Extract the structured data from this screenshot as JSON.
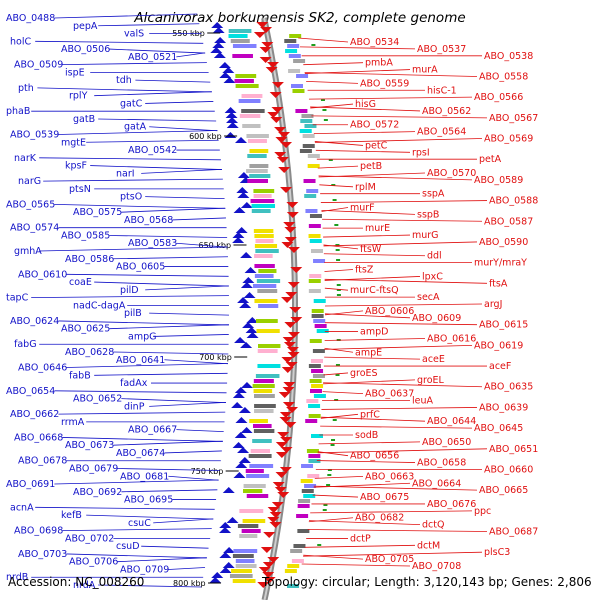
{
  "title": "Alcanivorax borkumensis SK2, complete genome",
  "footer": {
    "accession": "Accession: NC_008260",
    "topology": "Topology: circular; Length: 3,120,143 bp; Genes: 2,806"
  },
  "colors": {
    "left_strand": "#1212c8",
    "right_strand": "#e01010",
    "backbone": "#8a8a8a"
  },
  "kbp_labels": [
    "550 kbp",
    "600 kbp",
    "650 kbp",
    "700 kbp",
    "750 kbp",
    "800 kbp"
  ],
  "left_labels": [
    "ABO_0488",
    "pepA",
    "valS",
    "holC",
    "ABO_0506",
    "ABO_0521",
    "ABO_0509",
    "ispE",
    "tdh",
    "pth",
    "rplY",
    "gatC",
    "phaB",
    "gatB",
    "gatA",
    "ABO_0539",
    "mgtE",
    "ABO_0542",
    "narK",
    "kpsF",
    "narI",
    "narG",
    "ptsN",
    "ptsO",
    "ABO_0565",
    "ABO_0575",
    "ABO_0568",
    "ABO_0574",
    "ABO_0585",
    "ABO_0583",
    "gmhA",
    "ABO_0586",
    "ABO_0605",
    "ABO_0610",
    "coaE",
    "pilD",
    "tapC",
    "nadC-dagA",
    "pilB",
    "ABO_0624",
    "ABO_0625",
    "ampG",
    "fabG",
    "ABO_0628",
    "ABO_0641",
    "ABO_0646",
    "fabB",
    "fadAx",
    "ABO_0654",
    "ABO_0652",
    "dinP",
    "ABO_0662",
    "rrmA",
    "ABO_0667",
    "ABO_0668",
    "ABO_0673",
    "ABO_0674",
    "ABO_0678",
    "ABO_0679",
    "ABO_0681",
    "ABO_0691",
    "ABO_0692",
    "ABO_0695",
    "acnA",
    "kefB",
    "csuC",
    "ABO_0698",
    "ABO_0702",
    "csuD",
    "ABO_0703",
    "ABO_0706",
    "ABO_0709",
    "nrdB",
    "nrdA"
  ],
  "right_labels": [
    "ABO_0534",
    "ABO_0537",
    "ABO_0538",
    "pmbA",
    "murA",
    "ABO_0558",
    "ABO_0559",
    "hisC-1",
    "ABO_0566",
    "hisG",
    "ABO_0562",
    "ABO_0567",
    "ABO_0572",
    "ABO_0564",
    "ABO_0569",
    "petC",
    "rpsI",
    "petA",
    "petB",
    "ABO_0570",
    "ABO_0589",
    "rplM",
    "sspA",
    "ABO_0588",
    "murF",
    "sspB",
    "ABO_0587",
    "murE",
    "murG",
    "ABO_0590",
    "ftsW",
    "ddl",
    "murY/mraY",
    "ftsZ",
    "lpxC",
    "ftsA",
    "murC-ftsQ",
    "secA",
    "argJ",
    "ABO_0606",
    "ABO_0609",
    "ABO_0615",
    "ampD",
    "ABO_0616",
    "ABO_0619",
    "ampE",
    "aceE",
    "aceF",
    "groES",
    "groEL",
    "ABO_0635",
    "ABO_0637",
    "leuA",
    "ABO_0639",
    "prfC",
    "ABO_0644",
    "ABO_0645",
    "sodB",
    "ABO_0650",
    "ABO_0651",
    "ABO_0656",
    "ABO_0658",
    "ABO_0660",
    "ABO_0663",
    "ABO_0664",
    "ABO_0665",
    "ABO_0675",
    "ABO_0676",
    "ppc",
    "ABO_0682",
    "dctQ",
    "ABO_0687",
    "dctP",
    "dctM",
    "plsC3",
    "ABO_0705",
    "ABO_0708"
  ]
}
